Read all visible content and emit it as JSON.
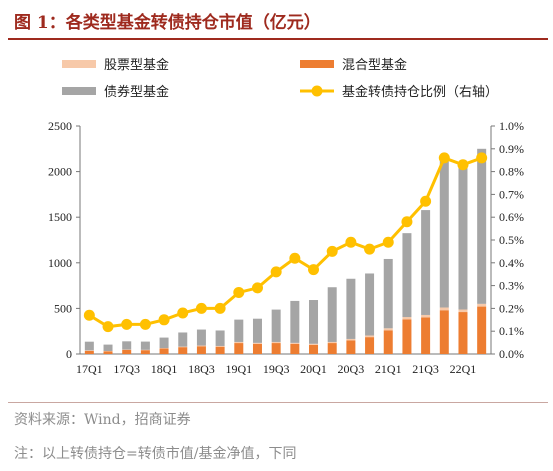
{
  "title": "图 1：各类型基金转债持仓市值（亿元）",
  "source": "资料来源：Wind，招商证券",
  "note": "注：以上转债持仓=转债市值/基金净值，下同",
  "colors": {
    "title": "#9e2a1e",
    "stock": "#f7c9a9",
    "mixed": "#ed7d31",
    "bond": "#a5a5a5",
    "ratio": "#ffc000"
  },
  "chart_data": {
    "type": "bar",
    "stacked": true,
    "categories": [
      "17Q1",
      "17Q2",
      "17Q3",
      "17Q4",
      "18Q1",
      "18Q2",
      "18Q3",
      "18Q4",
      "19Q1",
      "19Q2",
      "19Q3",
      "19Q4",
      "20Q1",
      "20Q2",
      "20Q3",
      "20Q4",
      "21Q1",
      "21Q2",
      "21Q3",
      "21Q4",
      "22Q1",
      "22Q2"
    ],
    "xtick_labels": [
      "17Q1",
      "",
      "17Q3",
      "",
      "18Q1",
      "",
      "18Q3",
      "",
      "19Q1",
      "",
      "19Q3",
      "",
      "20Q1",
      "",
      "20Q3",
      "",
      "21Q1",
      "",
      "21Q3",
      "",
      "22Q1",
      ""
    ],
    "ylim": [
      0,
      2500
    ],
    "yticks": [
      0,
      500,
      1000,
      1500,
      2000,
      2500
    ],
    "y2lim": [
      0,
      1.0
    ],
    "y2ticks": [
      "0.0%",
      "0.1%",
      "0.2%",
      "0.3%",
      "0.4%",
      "0.5%",
      "0.6%",
      "0.7%",
      "0.8%",
      "0.9%",
      "1.0%"
    ],
    "legend_position": "top",
    "series": [
      {
        "name": "股票型基金",
        "kind": "bar",
        "color": "#f7c9a9",
        "values": [
          5,
          3,
          4,
          4,
          5,
          6,
          8,
          8,
          12,
          12,
          12,
          12,
          12,
          12,
          15,
          18,
          22,
          25,
          28,
          30,
          28,
          30
        ]
      },
      {
        "name": "混合型基金",
        "kind": "bar",
        "color": "#ed7d31",
        "values": [
          35,
          30,
          45,
          42,
          60,
          75,
          85,
          80,
          120,
          110,
          120,
          110,
          100,
          120,
          150,
          185,
          260,
          380,
          400,
          480,
          460,
          520
        ]
      },
      {
        "name": "债券型基金",
        "kind": "bar",
        "color": "#a5a5a5",
        "values": [
          95,
          70,
          90,
          90,
          115,
          155,
          175,
          170,
          245,
          265,
          355,
          460,
          480,
          600,
          660,
          680,
          760,
          920,
          1150,
          1640,
          1570,
          1700
        ]
      },
      {
        "name": "基金转债持仓比例（右轴）",
        "kind": "line",
        "color": "#ffc000",
        "axis": "right",
        "values": [
          0.17,
          0.12,
          0.13,
          0.13,
          0.15,
          0.18,
          0.2,
          0.2,
          0.27,
          0.29,
          0.36,
          0.42,
          0.37,
          0.45,
          0.49,
          0.46,
          0.49,
          0.58,
          0.67,
          0.86,
          0.83,
          0.86
        ]
      }
    ]
  }
}
